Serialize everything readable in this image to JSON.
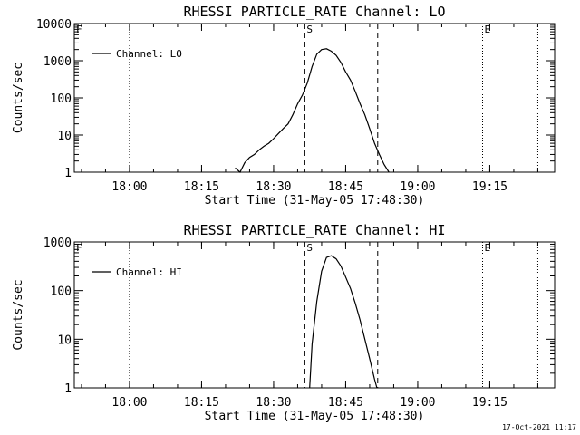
{
  "chart_data": [
    {
      "type": "line",
      "title": "RHESSI PARTICLE_RATE Channel: LO",
      "xlabel": "Start Time (31-May-05 17:48:30)",
      "ylabel": "Counts/sec",
      "yscale": "log",
      "ylim": [
        1,
        10000
      ],
      "y_ticks": [
        1,
        10,
        100,
        1000,
        10000
      ],
      "x_ticks": [
        "18:00",
        "18:15",
        "18:30",
        "18:45",
        "19:00",
        "19:15"
      ],
      "legend": "top-left",
      "series": [
        {
          "name": "Channel: LO",
          "x": [
            "18:22:00",
            "18:23:00",
            "18:24:00",
            "18:25:00",
            "18:26:00",
            "18:27:00",
            "18:28:00",
            "18:29:00",
            "18:30:00",
            "18:31:00",
            "18:32:00",
            "18:33:00",
            "18:34:00",
            "18:35:00",
            "18:36:00",
            "18:37:00",
            "18:38:00",
            "18:39:00",
            "18:40:00",
            "18:41:00",
            "18:42:00",
            "18:43:00",
            "18:44:00",
            "18:45:00",
            "18:46:00",
            "18:47:00",
            "18:48:00",
            "18:49:00",
            "18:50:00",
            "18:51:00",
            "18:52:00",
            "18:53:00",
            "18:54:00"
          ],
          "values": [
            1.3,
            1,
            1.8,
            2.5,
            3,
            4,
            5,
            6,
            8,
            11,
            15,
            20,
            35,
            70,
            120,
            250,
            700,
            1500,
            2000,
            2100,
            1800,
            1400,
            900,
            500,
            300,
            150,
            70,
            35,
            15,
            6,
            3,
            1.6,
            1
          ]
        }
      ],
      "markers": [
        {
          "label": "F",
          "x": "17:48:30",
          "style": "dotted"
        },
        {
          "label": "",
          "x": "18:00:00",
          "style": "dotted"
        },
        {
          "label": "S",
          "x": "18:36:30",
          "style": "dashed"
        },
        {
          "label": "",
          "x": "18:51:40",
          "style": "dashed"
        },
        {
          "label": "E",
          "x": "19:13:30",
          "style": "dotted"
        },
        {
          "label": "",
          "x": "19:25:00",
          "style": "dotted"
        }
      ]
    },
    {
      "type": "line",
      "title": "RHESSI PARTICLE_RATE Channel: HI",
      "xlabel": "Start Time (31-May-05 17:48:30)",
      "ylabel": "Counts/sec",
      "yscale": "log",
      "ylim": [
        1,
        1000
      ],
      "y_ticks": [
        1,
        10,
        100,
        1000
      ],
      "x_ticks": [
        "18:00",
        "18:15",
        "18:30",
        "18:45",
        "19:00",
        "19:15"
      ],
      "legend": "top-left",
      "series": [
        {
          "name": "Channel: HI",
          "x": [
            "18:37:30",
            "18:38:00",
            "18:39:00",
            "18:40:00",
            "18:41:00",
            "18:42:00",
            "18:43:00",
            "18:44:00",
            "18:45:00",
            "18:46:00",
            "18:47:00",
            "18:48:00",
            "18:49:00",
            "18:50:00",
            "18:51:00",
            "18:51:30"
          ],
          "values": [
            1,
            8,
            60,
            250,
            480,
            520,
            450,
            320,
            190,
            110,
            55,
            25,
            10,
            4,
            1.5,
            1
          ]
        }
      ],
      "markers": [
        {
          "label": "F",
          "x": "17:48:30",
          "style": "dotted"
        },
        {
          "label": "",
          "x": "18:00:00",
          "style": "dotted"
        },
        {
          "label": "S",
          "x": "18:36:30",
          "style": "dashed"
        },
        {
          "label": "",
          "x": "18:51:40",
          "style": "dashed"
        },
        {
          "label": "E",
          "x": "19:13:30",
          "style": "dotted"
        },
        {
          "label": "",
          "x": "19:25:00",
          "style": "dotted"
        }
      ]
    }
  ],
  "footer": {
    "timestamp": "17-Oct-2021 11:17"
  }
}
